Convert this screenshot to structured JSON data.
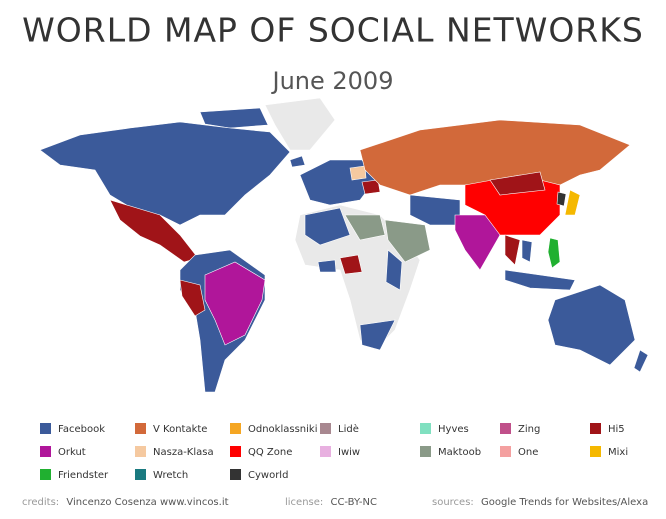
{
  "header": {
    "title": "WORLD MAP OF SOCIAL NETWORKS",
    "subtitle": "June 2009"
  },
  "legend": {
    "items": [
      {
        "name": "Facebook",
        "color": "#3b5a9a"
      },
      {
        "name": "V Kontakte",
        "color": "#d2693a"
      },
      {
        "name": "Odnoklassniki",
        "color": "#f5a623"
      },
      {
        "name": "Lidè",
        "color": "#a88890"
      },
      {
        "name": "Hyves",
        "color": "#80e0c0"
      },
      {
        "name": "Zing",
        "color": "#c0508a"
      },
      {
        "name": "Hi5",
        "color": "#a01418"
      },
      {
        "name": "Orkut",
        "color": "#b0169a"
      },
      {
        "name": "Nasza-Klasa",
        "color": "#f5c9a0"
      },
      {
        "name": "QQ Zone",
        "color": "#ff0000"
      },
      {
        "name": "Iwiw",
        "color": "#e8b0e0"
      },
      {
        "name": "Maktoob",
        "color": "#8a9a88"
      },
      {
        "name": "One",
        "color": "#f4a0a0"
      },
      {
        "name": "Mixi",
        "color": "#f5b800"
      },
      {
        "name": "Friendster",
        "color": "#20b030"
      },
      {
        "name": "Wretch",
        "color": "#1a7a80"
      },
      {
        "name": "Cyworld",
        "color": "#333333"
      }
    ]
  },
  "footer": {
    "credits_label": "credits:",
    "credits": "Vincenzo Cosenza  www.vincos.it",
    "license_label": "license:",
    "license": "CC-BY-NC",
    "sources_label": "sources:",
    "sources": "Google Trends for Websites/Alexa"
  }
}
